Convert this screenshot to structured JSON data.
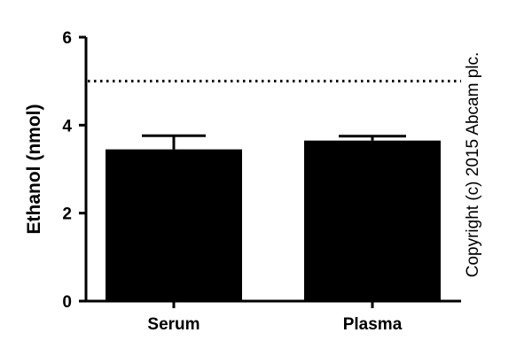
{
  "chart_data": {
    "type": "bar",
    "categories": [
      "Serum",
      "Plasma"
    ],
    "values": [
      3.45,
      3.65
    ],
    "error_upper": [
      3.76,
      3.75
    ],
    "ylabel": "Ethanol (nmol)",
    "xlabel": "",
    "ylim": [
      0,
      6
    ],
    "yticks": [
      "0",
      "2",
      "4",
      "6"
    ],
    "reference_line": {
      "y": 5,
      "style": "dotted"
    },
    "bar_color": "#000000",
    "grid": false
  },
  "watermark": "Copyright (c) 2015 Abcam plc."
}
